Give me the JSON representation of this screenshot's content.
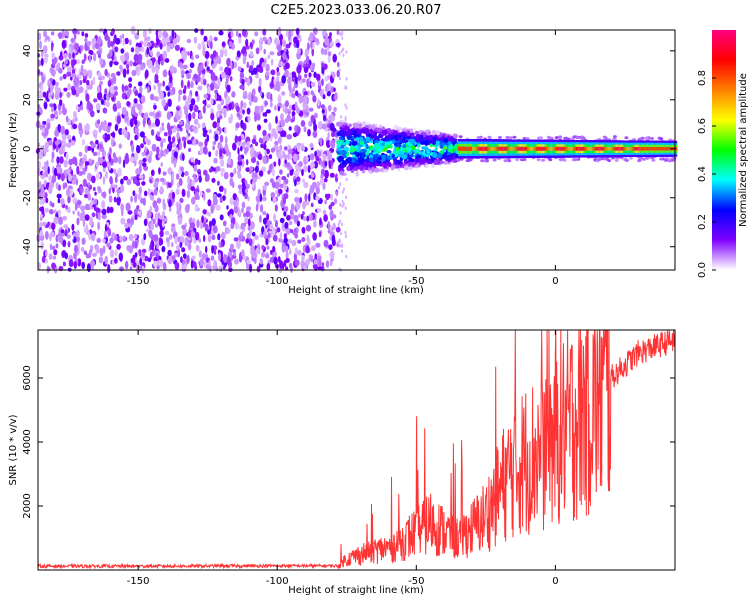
{
  "figure": {
    "title": "C2E5.2023.033.06.20.R07"
  },
  "chart_data": [
    {
      "type": "heatmap",
      "title": "",
      "xlabel": "Height of straight line (km)",
      "ylabel": "Frequency (Hz)",
      "xlim": [
        -186,
        43
      ],
      "ylim": [
        -49.5,
        48.5
      ],
      "xticks": [
        -150,
        -100,
        -50,
        0
      ],
      "yticks": [
        -40,
        -20,
        0,
        20,
        40
      ],
      "colorbar": {
        "label": "Normalized spectral amplitude",
        "range": [
          0.0,
          1.0
        ],
        "ticks": [
          0.0,
          0.2,
          0.4,
          0.6,
          0.8
        ],
        "colormap": [
          "#ffffff",
          "#8000ff",
          "#0000ff",
          "#00ffff",
          "#00ff00",
          "#ffff00",
          "#ff8000",
          "#ff0000",
          "#ff0080"
        ]
      },
      "regions": [
        {
          "name": "noise",
          "x_range": [
            -186,
            -78
          ],
          "freq_range": [
            -49.5,
            48.5
          ],
          "amplitude": [
            0.05,
            0.25
          ]
        },
        {
          "name": "signal-onset",
          "x_range": [
            -78,
            -35
          ],
          "freq_center": 0,
          "freq_halfwidth": [
            6,
            3
          ],
          "amplitude": [
            0.3,
            0.6
          ]
        },
        {
          "name": "signal-steady",
          "x_range": [
            -35,
            43
          ],
          "freq_center": 0,
          "freq_halfwidth": [
            2.5,
            2
          ],
          "amplitude": [
            0.7,
            0.95
          ]
        }
      ]
    },
    {
      "type": "line",
      "title": "",
      "xlabel": "Height of straight line (km)",
      "ylabel": "SNR (10 * v/v)",
      "xlim": [
        -186,
        43
      ],
      "ylim": [
        0,
        7500
      ],
      "xticks": [
        -150,
        -100,
        -50,
        0
      ],
      "yticks": [
        2000,
        4000,
        6000
      ],
      "color": "#ff3333",
      "x": [
        -186,
        -150,
        -100,
        -78,
        -76,
        -70,
        -60,
        -55,
        -50,
        -45,
        -40,
        -35,
        -30,
        -25,
        -20,
        -15,
        -10,
        -5,
        0,
        5,
        10,
        20,
        30,
        43
      ],
      "y": [
        120,
        120,
        130,
        130,
        300,
        500,
        700,
        900,
        1200,
        1500,
        1200,
        1000,
        1300,
        1700,
        2500,
        3200,
        3500,
        3700,
        4200,
        4600,
        5000,
        6000,
        6800,
        7200
      ]
    }
  ]
}
